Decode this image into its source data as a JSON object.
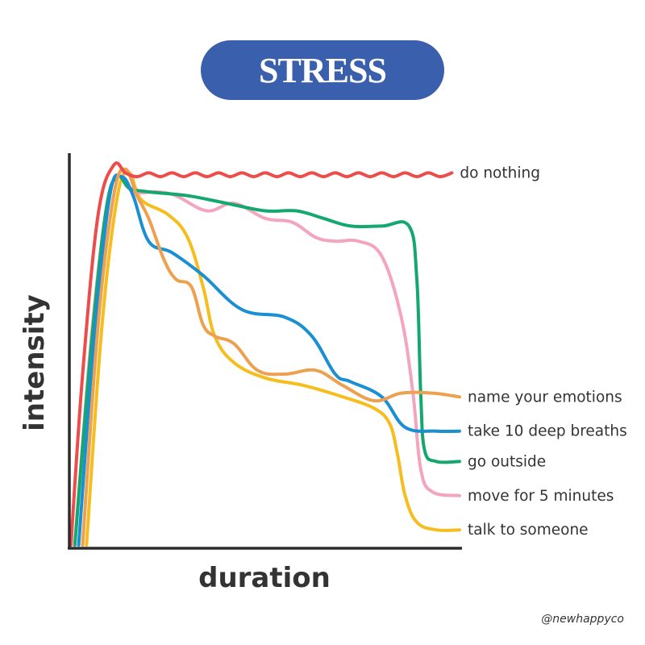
{
  "title": "STRESS",
  "watermark": "@newhappyco",
  "chart_data": {
    "type": "line",
    "title": "STRESS",
    "xlabel": "duration",
    "ylabel": "intensity",
    "xlim": [
      0,
      100
    ],
    "ylim": [
      0,
      100
    ],
    "grid": false,
    "legend": "right, inline labels at line ends",
    "series": [
      {
        "name": "do nothing",
        "color": "#ee4b4b",
        "points": [
          [
            0,
            0
          ],
          [
            3,
            45
          ],
          [
            7,
            87
          ],
          [
            11,
            100
          ],
          [
            14,
            98
          ],
          [
            17,
            97
          ],
          [
            20,
            98
          ],
          [
            23,
            97
          ],
          [
            26,
            98
          ],
          [
            29,
            97
          ],
          [
            32,
            98
          ],
          [
            35,
            97
          ],
          [
            38,
            98
          ],
          [
            41,
            97
          ],
          [
            44,
            98
          ],
          [
            47,
            97
          ],
          [
            50,
            98
          ],
          [
            53,
            97
          ],
          [
            56,
            98
          ],
          [
            59,
            97
          ],
          [
            62,
            98
          ],
          [
            65,
            97
          ],
          [
            68,
            98
          ],
          [
            71,
            97
          ],
          [
            74,
            98
          ],
          [
            77,
            97
          ],
          [
            80,
            98
          ],
          [
            83,
            97
          ],
          [
            86,
            98
          ],
          [
            89,
            97
          ],
          [
            92,
            98
          ],
          [
            95,
            97
          ],
          [
            98,
            98
          ]
        ]
      },
      {
        "name": "name your emotions",
        "color": "#eda050",
        "points": [
          [
            3,
            0
          ],
          [
            7,
            58
          ],
          [
            11,
            92
          ],
          [
            14,
            99
          ],
          [
            17,
            92
          ],
          [
            20,
            86
          ],
          [
            24,
            75
          ],
          [
            27,
            70
          ],
          [
            31,
            68
          ],
          [
            34,
            58
          ],
          [
            37,
            55
          ],
          [
            42,
            53
          ],
          [
            48,
            46
          ],
          [
            55,
            45
          ],
          [
            63,
            46
          ],
          [
            70,
            42
          ],
          [
            78,
            38
          ],
          [
            85,
            40
          ],
          [
            93,
            40
          ],
          [
            100,
            39
          ]
        ]
      },
      {
        "name": "take 10 deep breaths",
        "color": "#1a8fd1",
        "points": [
          [
            2,
            0
          ],
          [
            6,
            55
          ],
          [
            10,
            92
          ],
          [
            13,
            97
          ],
          [
            16,
            92
          ],
          [
            20,
            80
          ],
          [
            26,
            77
          ],
          [
            34,
            71
          ],
          [
            44,
            62
          ],
          [
            55,
            60
          ],
          [
            62,
            55
          ],
          [
            68,
            45
          ],
          [
            72,
            43
          ],
          [
            80,
            39
          ],
          [
            86,
            31
          ],
          [
            94,
            30
          ],
          [
            100,
            30
          ]
        ]
      },
      {
        "name": "go outside",
        "color": "#12a86e",
        "points": [
          [
            1,
            0
          ],
          [
            5,
            50
          ],
          [
            9,
            88
          ],
          [
            12,
            97
          ],
          [
            15,
            94
          ],
          [
            20,
            93
          ],
          [
            30,
            92
          ],
          [
            40,
            90
          ],
          [
            50,
            88
          ],
          [
            58,
            88
          ],
          [
            65,
            86
          ],
          [
            72,
            84
          ],
          [
            80,
            84
          ],
          [
            87,
            84
          ],
          [
            89,
            70
          ],
          [
            90,
            40
          ],
          [
            91,
            25
          ],
          [
            94,
            22
          ],
          [
            100,
            22
          ]
        ]
      },
      {
        "name": "move for 5 minutes",
        "color": "#f2a5bd",
        "points": [
          [
            1,
            0
          ],
          [
            5,
            52
          ],
          [
            9,
            88
          ],
          [
            12,
            97
          ],
          [
            16,
            93
          ],
          [
            22,
            93
          ],
          [
            27,
            92
          ],
          [
            35,
            88
          ],
          [
            42,
            90
          ],
          [
            50,
            86
          ],
          [
            57,
            85
          ],
          [
            63,
            81
          ],
          [
            68,
            80
          ],
          [
            74,
            80
          ],
          [
            80,
            76
          ],
          [
            85,
            60
          ],
          [
            88,
            40
          ],
          [
            90,
            20
          ],
          [
            93,
            14
          ],
          [
            100,
            13
          ]
        ]
      },
      {
        "name": "talk to someone",
        "color": "#f6bd1e",
        "points": [
          [
            4,
            0
          ],
          [
            8,
            58
          ],
          [
            12,
            92
          ],
          [
            15,
            98
          ],
          [
            18,
            91
          ],
          [
            25,
            87
          ],
          [
            30,
            81
          ],
          [
            34,
            68
          ],
          [
            37,
            55
          ],
          [
            42,
            48
          ],
          [
            50,
            44
          ],
          [
            60,
            42
          ],
          [
            70,
            39
          ],
          [
            78,
            36
          ],
          [
            82,
            32
          ],
          [
            84,
            24
          ],
          [
            86,
            13
          ],
          [
            89,
            6
          ],
          [
            94,
            4
          ],
          [
            100,
            4
          ]
        ]
      }
    ]
  }
}
